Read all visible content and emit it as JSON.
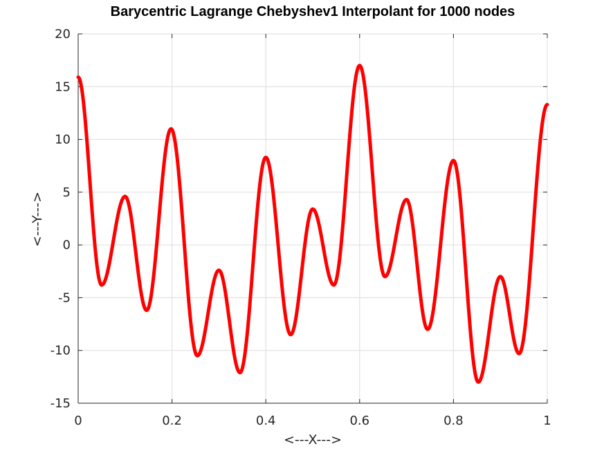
{
  "chart_data": {
    "type": "line",
    "title": "Barycentric Lagrange Chebyshev1 Interpolant for 1000 nodes",
    "xlabel": "<---X--->",
    "ylabel": "<---Y--->",
    "xlim": [
      0,
      1
    ],
    "ylim": [
      -15,
      20
    ],
    "xticks": [
      0,
      0.2,
      0.4,
      0.6,
      0.8,
      1
    ],
    "xtick_labels": [
      "0",
      "0.2",
      "0.4",
      "0.6",
      "0.8",
      "1"
    ],
    "yticks": [
      -15,
      -10,
      -5,
      0,
      5,
      10,
      15,
      20
    ],
    "ytick_labels": [
      "-15",
      "-10",
      "-5",
      "0",
      "5",
      "10",
      "15",
      "20"
    ],
    "grid": true,
    "series": [
      {
        "color": "#ff0000",
        "x": [
          0,
          0.05,
          0.1,
          0.146,
          0.198,
          0.254,
          0.3,
          0.345,
          0.4,
          0.453,
          0.5,
          0.545,
          0.6,
          0.654,
          0.7,
          0.745,
          0.8,
          0.853,
          0.9,
          0.94,
          1.0
        ],
        "y": [
          15.9,
          -3.8,
          4.6,
          -6.2,
          11.0,
          -10.5,
          -2.4,
          -12.1,
          8.3,
          -8.5,
          3.4,
          -3.8,
          17.0,
          -3.0,
          4.3,
          -8.0,
          8.0,
          -13.0,
          -3.0,
          -10.3,
          13.3
        ]
      }
    ]
  }
}
